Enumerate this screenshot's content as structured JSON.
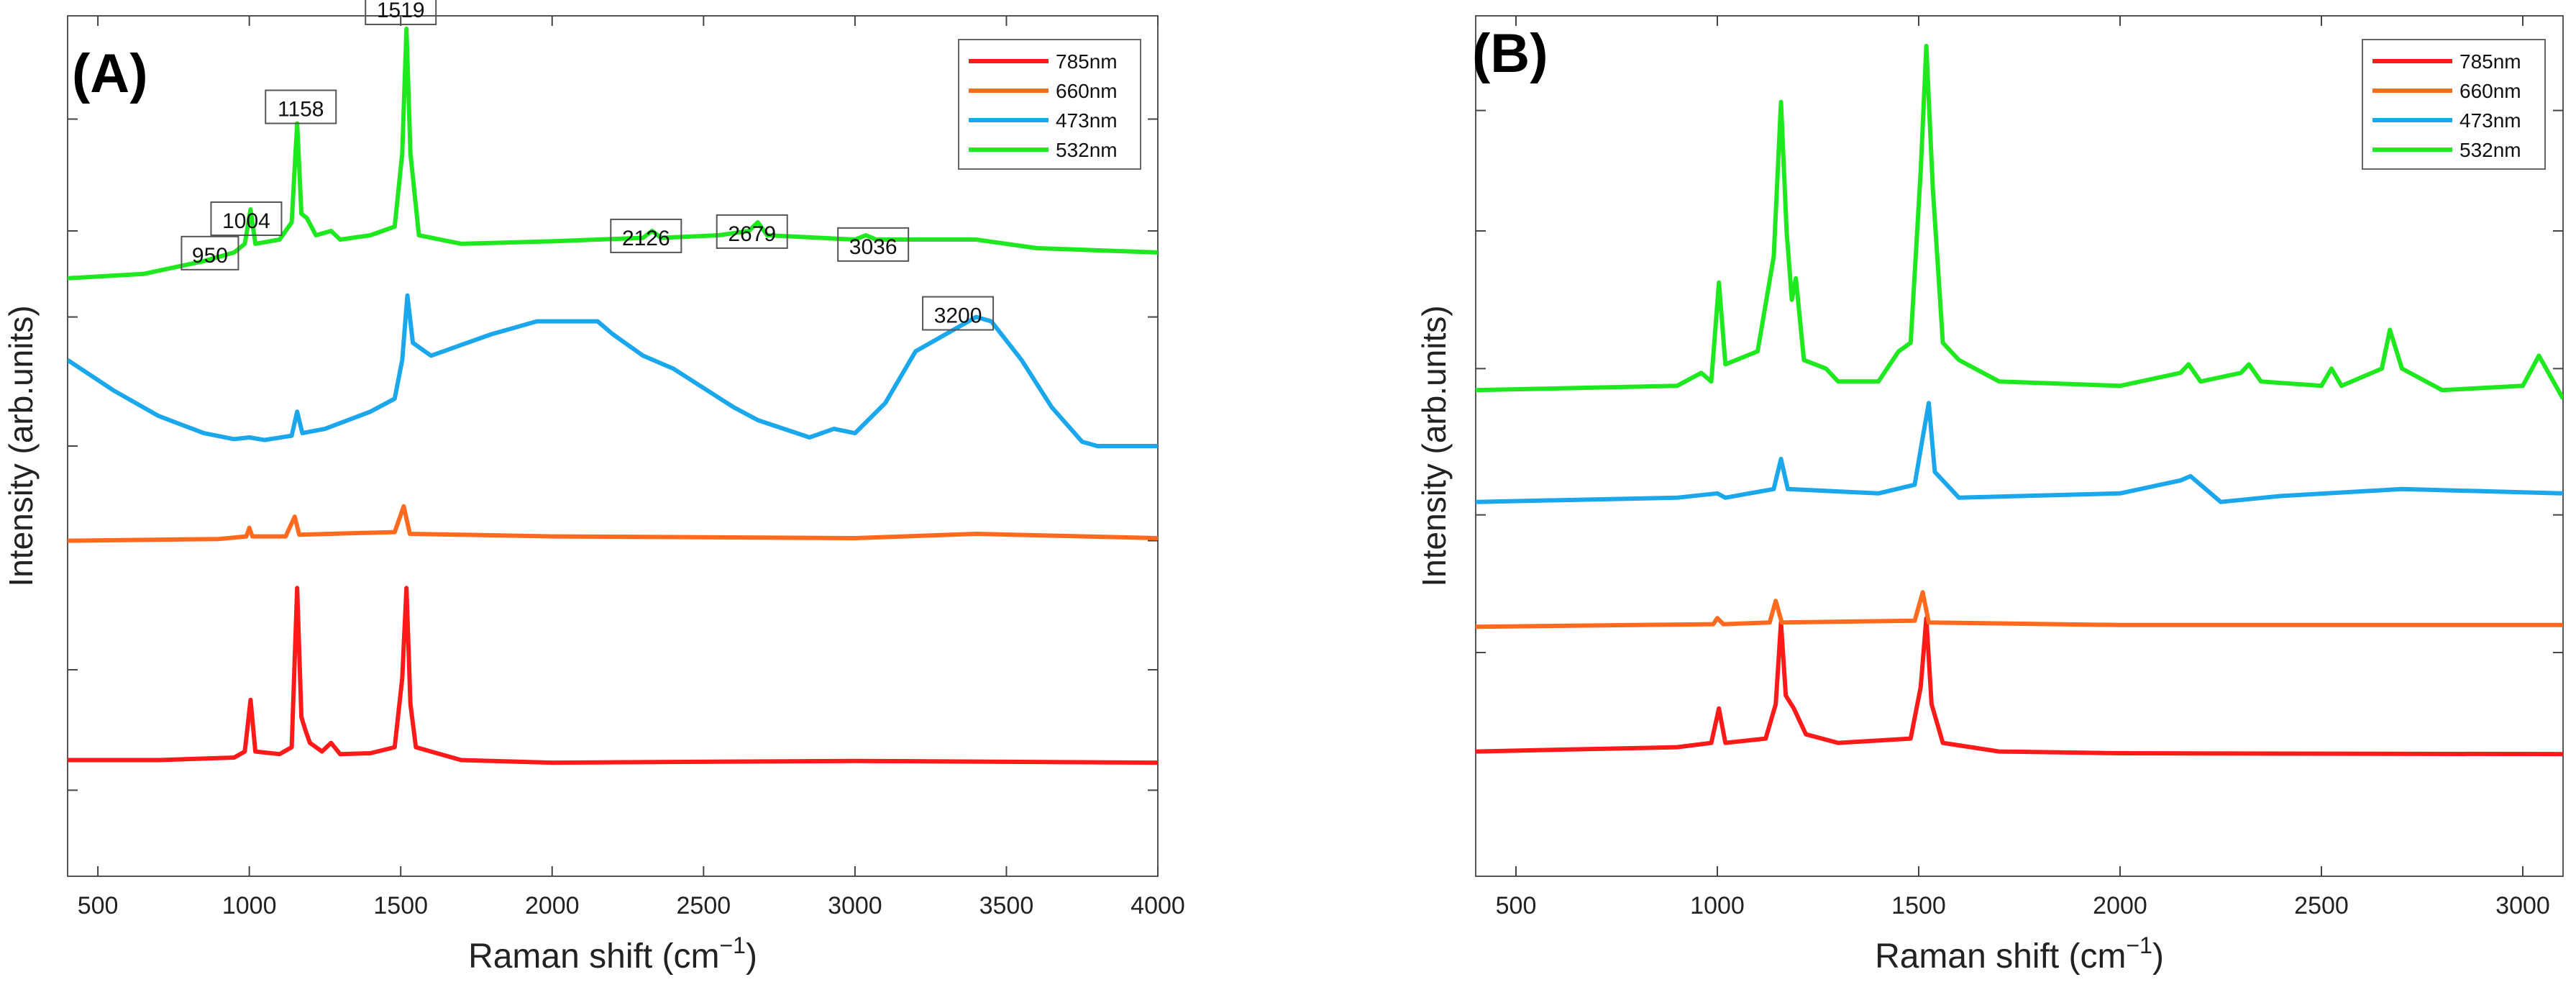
{
  "chart_data": [
    {
      "id": "A",
      "type": "line",
      "panel_label": "(A)",
      "xlabel": "Raman shift (cm",
      "xlabel_sup": "−1",
      "xlabel_close": ")",
      "ylabel": "Intensity (arb.units)",
      "xlim": [
        400,
        4000
      ],
      "ylim": [
        0,
        10
      ],
      "x_ticks": [
        500,
        1000,
        1500,
        2000,
        2500,
        3000,
        3500,
        4000
      ],
      "x_tick_labels": [
        "500",
        "1000",
        "1500",
        "2000",
        "2500",
        "3000",
        "3500",
        "4000"
      ],
      "y_ticks": [
        1.0,
        2.4,
        3.9,
        5.0,
        6.5,
        7.5,
        8.8
      ],
      "legend": {
        "location": "top-right",
        "entries": [
          {
            "label": "785nm",
            "color": "#ff1a1a"
          },
          {
            "label": "660nm",
            "color": "#ff6a1f"
          },
          {
            "label": "473nm",
            "color": "#1aa7ec"
          },
          {
            "label": "532nm",
            "color": "#1ee81e"
          }
        ]
      },
      "annotations": [
        {
          "text": "950",
          "x": 870,
          "y": 7.05
        },
        {
          "text": "1004",
          "x": 990,
          "y": 7.45
        },
        {
          "text": "1158",
          "x": 1170,
          "y": 8.75
        },
        {
          "text": "1519",
          "x": 1500,
          "y": 9.9
        },
        {
          "text": "2126",
          "x": 2310,
          "y": 7.25
        },
        {
          "text": "2679",
          "x": 2660,
          "y": 7.3
        },
        {
          "text": "3036",
          "x": 3060,
          "y": 7.15
        },
        {
          "text": "3200",
          "x": 3340,
          "y": 6.35
        }
      ],
      "series": [
        {
          "name": "785nm",
          "color": "#ff1a1a",
          "points": [
            [
              400,
              1.35
            ],
            [
              700,
              1.35
            ],
            [
              950,
              1.38
            ],
            [
              985,
              1.45
            ],
            [
              1004,
              2.05
            ],
            [
              1020,
              1.45
            ],
            [
              1100,
              1.42
            ],
            [
              1140,
              1.5
            ],
            [
              1158,
              3.35
            ],
            [
              1172,
              1.85
            ],
            [
              1185,
              1.7
            ],
            [
              1200,
              1.55
            ],
            [
              1240,
              1.45
            ],
            [
              1270,
              1.55
            ],
            [
              1300,
              1.42
            ],
            [
              1400,
              1.43
            ],
            [
              1480,
              1.5
            ],
            [
              1505,
              2.3
            ],
            [
              1519,
              3.35
            ],
            [
              1532,
              2.0
            ],
            [
              1550,
              1.5
            ],
            [
              1600,
              1.45
            ],
            [
              1700,
              1.35
            ],
            [
              2000,
              1.32
            ],
            [
              3000,
              1.34
            ],
            [
              4000,
              1.32
            ]
          ]
        },
        {
          "name": "660nm",
          "color": "#ff6a1f",
          "points": [
            [
              400,
              3.9
            ],
            [
              900,
              3.92
            ],
            [
              990,
              3.95
            ],
            [
              1000,
              4.05
            ],
            [
              1010,
              3.95
            ],
            [
              1120,
              3.95
            ],
            [
              1150,
              4.18
            ],
            [
              1165,
              3.97
            ],
            [
              1480,
              4.0
            ],
            [
              1510,
              4.3
            ],
            [
              1530,
              3.98
            ],
            [
              2000,
              3.95
            ],
            [
              3000,
              3.93
            ],
            [
              3400,
              3.98
            ],
            [
              4000,
              3.93
            ]
          ]
        },
        {
          "name": "473nm",
          "color": "#1aa7ec",
          "points": [
            [
              400,
              6.0
            ],
            [
              550,
              5.65
            ],
            [
              700,
              5.35
            ],
            [
              850,
              5.15
            ],
            [
              950,
              5.08
            ],
            [
              1000,
              5.1
            ],
            [
              1050,
              5.07
            ],
            [
              1140,
              5.12
            ],
            [
              1158,
              5.4
            ],
            [
              1175,
              5.15
            ],
            [
              1250,
              5.2
            ],
            [
              1400,
              5.4
            ],
            [
              1480,
              5.55
            ],
            [
              1505,
              6.0
            ],
            [
              1522,
              6.75
            ],
            [
              1540,
              6.2
            ],
            [
              1600,
              6.05
            ],
            [
              1800,
              6.3
            ],
            [
              1950,
              6.45
            ],
            [
              2100,
              6.45
            ],
            [
              2150,
              6.45
            ],
            [
              2200,
              6.3
            ],
            [
              2300,
              6.05
            ],
            [
              2400,
              5.9
            ],
            [
              2600,
              5.45
            ],
            [
              2680,
              5.3
            ],
            [
              2850,
              5.1
            ],
            [
              2930,
              5.2
            ],
            [
              3000,
              5.15
            ],
            [
              3100,
              5.5
            ],
            [
              3200,
              6.1
            ],
            [
              3300,
              6.3
            ],
            [
              3400,
              6.5
            ],
            [
              3450,
              6.45
            ],
            [
              3550,
              6.0
            ],
            [
              3650,
              5.45
            ],
            [
              3750,
              5.05
            ],
            [
              3800,
              5.0
            ],
            [
              4000,
              5.0
            ]
          ]
        },
        {
          "name": "532nm",
          "color": "#1ee81e",
          "points": [
            [
              400,
              6.95
            ],
            [
              650,
              7.0
            ],
            [
              850,
              7.15
            ],
            [
              950,
              7.25
            ],
            [
              985,
              7.35
            ],
            [
              1004,
              7.75
            ],
            [
              1020,
              7.35
            ],
            [
              1100,
              7.4
            ],
            [
              1140,
              7.6
            ],
            [
              1158,
              8.75
            ],
            [
              1172,
              7.7
            ],
            [
              1190,
              7.65
            ],
            [
              1220,
              7.45
            ],
            [
              1270,
              7.5
            ],
            [
              1300,
              7.4
            ],
            [
              1400,
              7.45
            ],
            [
              1480,
              7.55
            ],
            [
              1505,
              8.4
            ],
            [
              1519,
              9.85
            ],
            [
              1532,
              8.4
            ],
            [
              1560,
              7.45
            ],
            [
              1700,
              7.35
            ],
            [
              2000,
              7.38
            ],
            [
              2300,
              7.42
            ],
            [
              2330,
              7.5
            ],
            [
              2360,
              7.42
            ],
            [
              2550,
              7.45
            ],
            [
              2650,
              7.5
            ],
            [
              2679,
              7.6
            ],
            [
              2710,
              7.45
            ],
            [
              3000,
              7.4
            ],
            [
              3036,
              7.45
            ],
            [
              3070,
              7.4
            ],
            [
              3400,
              7.4
            ],
            [
              3600,
              7.3
            ],
            [
              4000,
              7.25
            ]
          ]
        }
      ]
    },
    {
      "id": "B",
      "type": "line",
      "panel_label": "(B)",
      "xlabel": "Raman shift (cm",
      "xlabel_sup": "−1",
      "xlabel_close": ")",
      "ylabel": "Intensity (arb.units)",
      "xlim": [
        400,
        3100
      ],
      "ylim": [
        0,
        10
      ],
      "x_ticks": [
        500,
        1000,
        1500,
        2000,
        2500,
        3000
      ],
      "x_tick_labels": [
        "500",
        "1000",
        "1500",
        "2000",
        "2500",
        "3000"
      ],
      "y_ticks": [
        2.6,
        4.2,
        5.9,
        7.5,
        8.9
      ],
      "legend": {
        "location": "top-right",
        "entries": [
          {
            "label": "785nm",
            "color": "#ff1a1a"
          },
          {
            "label": "660nm",
            "color": "#ff6a1f"
          },
          {
            "label": "473nm",
            "color": "#1aa7ec"
          },
          {
            "label": "532nm",
            "color": "#1ee81e"
          }
        ]
      },
      "annotations": [],
      "series": [
        {
          "name": "785nm",
          "color": "#ff1a1a",
          "points": [
            [
              400,
              1.45
            ],
            [
              900,
              1.5
            ],
            [
              985,
              1.55
            ],
            [
              1004,
              1.95
            ],
            [
              1020,
              1.55
            ],
            [
              1120,
              1.6
            ],
            [
              1145,
              2.0
            ],
            [
              1158,
              2.95
            ],
            [
              1170,
              2.1
            ],
            [
              1190,
              1.95
            ],
            [
              1220,
              1.65
            ],
            [
              1300,
              1.55
            ],
            [
              1480,
              1.6
            ],
            [
              1505,
              2.2
            ],
            [
              1519,
              3.0
            ],
            [
              1532,
              2.0
            ],
            [
              1560,
              1.55
            ],
            [
              1700,
              1.45
            ],
            [
              2000,
              1.43
            ],
            [
              3100,
              1.42
            ]
          ]
        },
        {
          "name": "660nm",
          "color": "#ff6a1f",
          "points": [
            [
              400,
              2.9
            ],
            [
              990,
              2.93
            ],
            [
              1000,
              3.0
            ],
            [
              1015,
              2.93
            ],
            [
              1130,
              2.95
            ],
            [
              1145,
              3.2
            ],
            [
              1160,
              2.95
            ],
            [
              1490,
              2.97
            ],
            [
              1510,
              3.3
            ],
            [
              1525,
              2.95
            ],
            [
              2000,
              2.92
            ],
            [
              3100,
              2.92
            ]
          ]
        },
        {
          "name": "473nm",
          "color": "#1aa7ec",
          "points": [
            [
              400,
              4.35
            ],
            [
              900,
              4.4
            ],
            [
              1000,
              4.45
            ],
            [
              1020,
              4.4
            ],
            [
              1140,
              4.5
            ],
            [
              1158,
              4.85
            ],
            [
              1175,
              4.5
            ],
            [
              1400,
              4.45
            ],
            [
              1490,
              4.55
            ],
            [
              1510,
              5.1
            ],
            [
              1525,
              5.5
            ],
            [
              1540,
              4.7
            ],
            [
              1600,
              4.4
            ],
            [
              2000,
              4.45
            ],
            [
              2150,
              4.6
            ],
            [
              2175,
              4.65
            ],
            [
              2250,
              4.35
            ],
            [
              2400,
              4.42
            ],
            [
              2700,
              4.5
            ],
            [
              3100,
              4.45
            ]
          ]
        },
        {
          "name": "532nm",
          "color": "#1ee81e",
          "points": [
            [
              400,
              5.65
            ],
            [
              900,
              5.7
            ],
            [
              960,
              5.85
            ],
            [
              985,
              5.75
            ],
            [
              1004,
              6.9
            ],
            [
              1020,
              5.95
            ],
            [
              1100,
              6.1
            ],
            [
              1140,
              7.2
            ],
            [
              1158,
              9.0
            ],
            [
              1172,
              7.5
            ],
            [
              1185,
              6.7
            ],
            [
              1195,
              6.95
            ],
            [
              1215,
              6.0
            ],
            [
              1270,
              5.9
            ],
            [
              1300,
              5.75
            ],
            [
              1400,
              5.75
            ],
            [
              1450,
              6.1
            ],
            [
              1480,
              6.2
            ],
            [
              1505,
              8.2
            ],
            [
              1519,
              9.65
            ],
            [
              1535,
              8.0
            ],
            [
              1560,
              6.2
            ],
            [
              1600,
              6.0
            ],
            [
              1700,
              5.75
            ],
            [
              2000,
              5.7
            ],
            [
              2150,
              5.85
            ],
            [
              2170,
              5.95
            ],
            [
              2200,
              5.75
            ],
            [
              2300,
              5.85
            ],
            [
              2320,
              5.95
            ],
            [
              2350,
              5.75
            ],
            [
              2500,
              5.7
            ],
            [
              2525,
              5.9
            ],
            [
              2550,
              5.7
            ],
            [
              2650,
              5.9
            ],
            [
              2670,
              6.35
            ],
            [
              2700,
              5.9
            ],
            [
              2800,
              5.65
            ],
            [
              3000,
              5.7
            ],
            [
              3040,
              6.05
            ],
            [
              3100,
              5.55
            ]
          ]
        }
      ]
    }
  ]
}
